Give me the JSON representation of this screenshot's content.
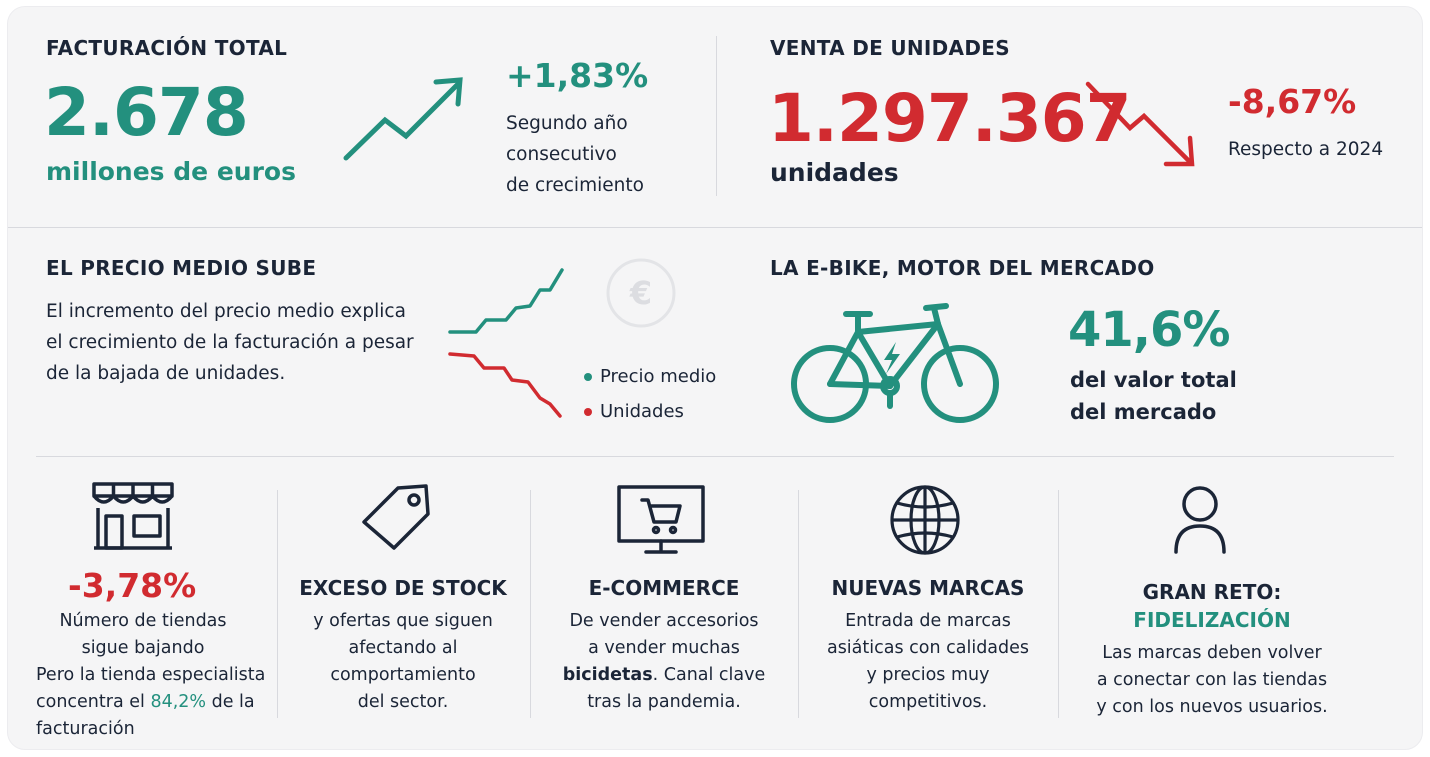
{
  "facturacion": {
    "heading": "FACTURACIÓN TOTAL",
    "value": "2.678",
    "unit": "millones de euros",
    "change": "+1,83%",
    "note_lines": [
      "Segundo año",
      "consecutivo",
      "de crecimiento"
    ],
    "icon": "trend-up-arrow-icon"
  },
  "unidades": {
    "heading": "VENTA DE UNIDADES",
    "value": "1.297.367",
    "unit": "unidades",
    "change": "-8,67%",
    "note": "Respecto a 2024",
    "icon": "trend-down-arrow-icon"
  },
  "precio": {
    "heading": "EL PRECIO MEDIO SUBE",
    "text_lines": [
      "El incremento del precio medio explica",
      "el crecimiento de la facturación a pesar",
      "de la bajada de unidades."
    ],
    "legend": [
      "Precio medio",
      "Unidades"
    ],
    "icon": "euro-icon"
  },
  "ebike": {
    "heading": "LA E-BIKE, MOTOR DEL MERCADO",
    "value": "41,6%",
    "text_lines": [
      "del valor total",
      "del mercado"
    ],
    "icon": "electric-bike-icon"
  },
  "columns": {
    "tiendas": {
      "value": "-3,78%",
      "lines": [
        "Número de tiendas",
        "sigue bajando"
      ],
      "extra_line1": "Pero la tienda especialista",
      "extra_line2_pre": "concentra el ",
      "extra_line2_highlight": "84,2%",
      "extra_line2_post": " de la",
      "extra_line3": "facturación",
      "icon": "store-icon"
    },
    "stock": {
      "title": "EXCESO DE STOCK",
      "lines": [
        "y ofertas que siguen",
        "afectando al",
        "comportamiento",
        "del sector."
      ],
      "icon": "price-tag-icon"
    },
    "ecommerce": {
      "title": "E-COMMERCE",
      "lines": [
        "De vender accesorios",
        "a vender muchas"
      ],
      "bold_word": "bicidetas",
      "line3_rest": ". Canal clave",
      "line4": "tras la pandemia.",
      "icon": "monitor-cart-icon"
    },
    "marcas": {
      "title": "NUEVAS MARCAS",
      "lines": [
        "Entrada de marcas",
        "asiáticas con calidades",
        "y precios muy",
        "competitivos."
      ],
      "icon": "globe-icon"
    },
    "reto": {
      "title": "GRAN RETO:",
      "highlight": "FIDELIZACIÓN",
      "lines": [
        "Las marcas deben volver",
        "a conectar con las tiendas",
        "y con los nuevos usuarios."
      ],
      "icon": "user-icon"
    }
  },
  "colors": {
    "teal": "#23907e",
    "red": "#d12b30",
    "navy": "#1b2537",
    "background": "#f5f5f6"
  }
}
